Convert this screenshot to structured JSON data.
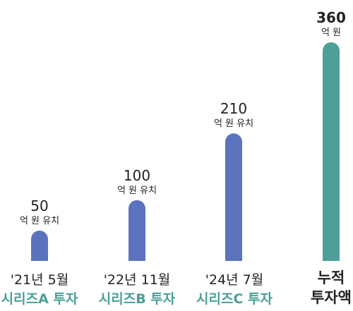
{
  "chart_data": {
    "type": "bar",
    "unit_label": "억 원 유치",
    "total_unit_label": "억 원",
    "categories": [
      {
        "date": "'21년 5월",
        "round": "시리즈A 투자",
        "value": 50
      },
      {
        "date": "'22년 11월",
        "round": "시리즈B 투자",
        "value": 100
      },
      {
        "date": "'24년 7월",
        "round": "시리즈C 투자",
        "value": 210
      }
    ],
    "total": {
      "label_line1": "누적",
      "label_line2": "투자액",
      "value": 360
    },
    "colors": {
      "bar": "#5b73be",
      "total_bar": "#4e9f99",
      "round_text": "#4a9f97",
      "text": "#222222"
    }
  }
}
